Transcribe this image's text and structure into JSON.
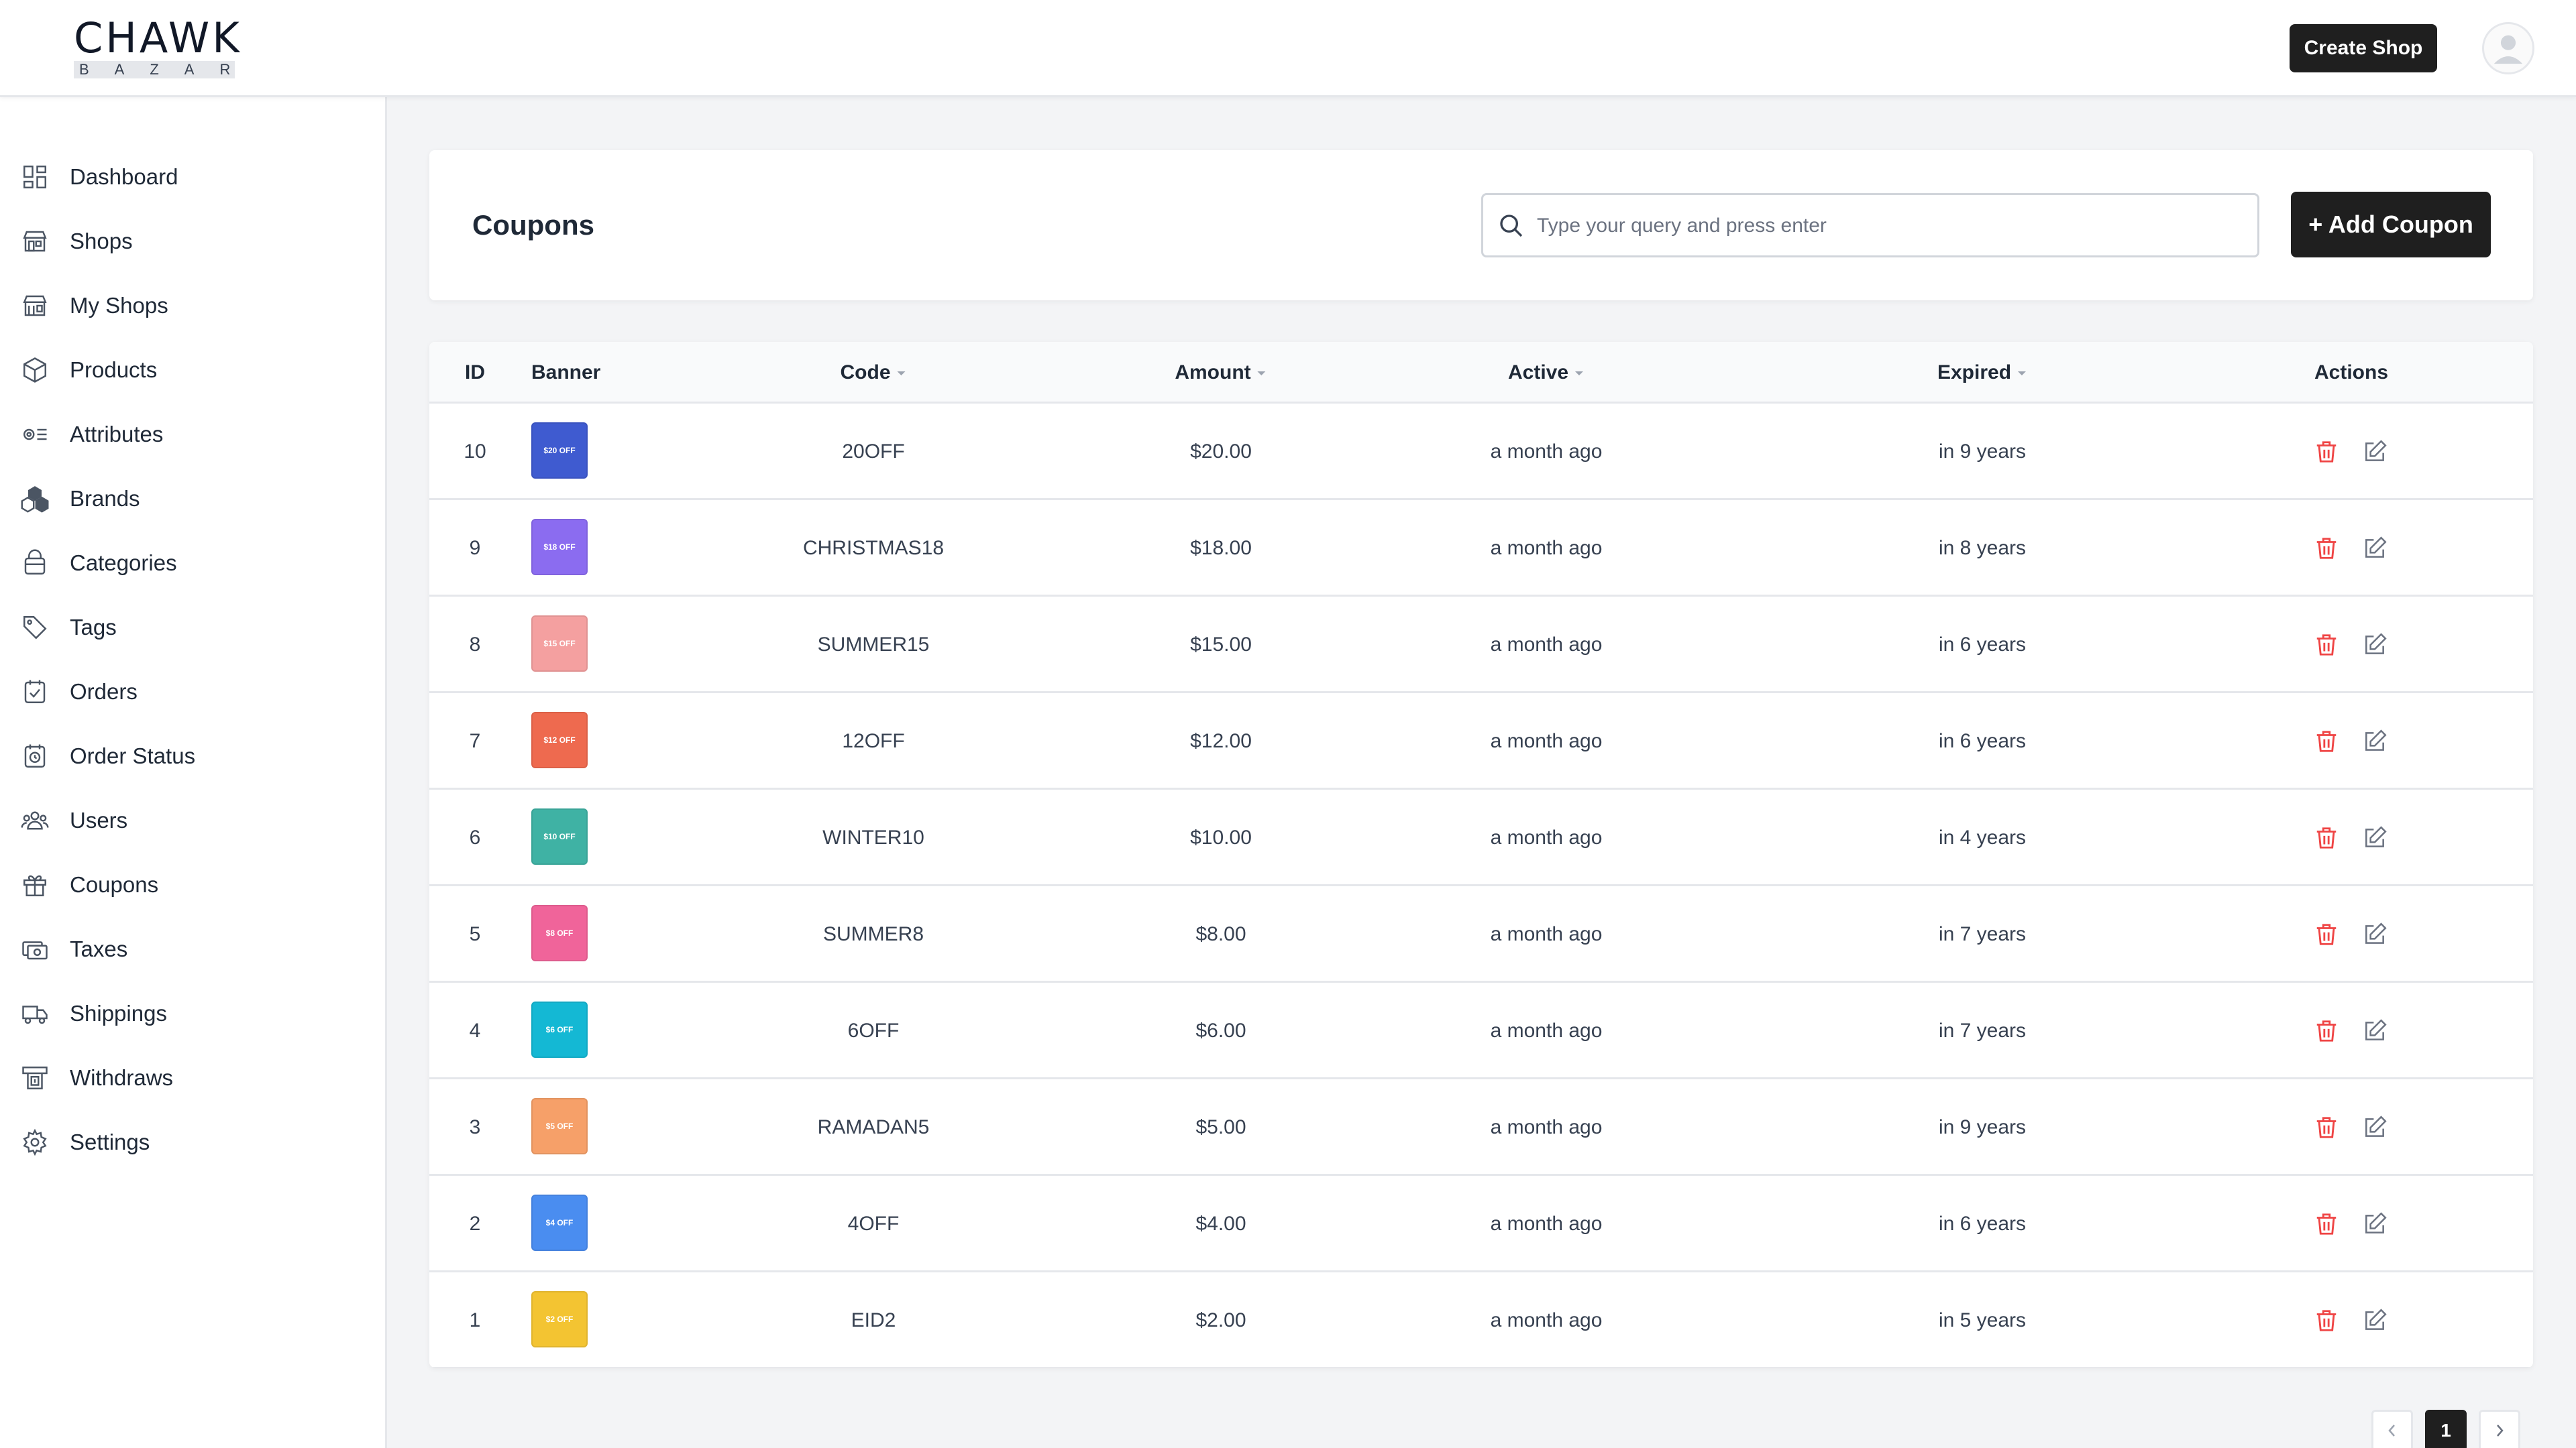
{
  "app": {
    "logo_top": "CHAWK",
    "logo_bottom": "BAZAR",
    "create_shop_label": "Create Shop"
  },
  "sidebar": {
    "items": [
      {
        "label": "Dashboard",
        "icon": "dashboard-icon"
      },
      {
        "label": "Shops",
        "icon": "shop-icon"
      },
      {
        "label": "My Shops",
        "icon": "my-shops-icon"
      },
      {
        "label": "Products",
        "icon": "box-icon"
      },
      {
        "label": "Attributes",
        "icon": "attributes-icon"
      },
      {
        "label": "Brands",
        "icon": "brands-icon"
      },
      {
        "label": "Categories",
        "icon": "categories-icon"
      },
      {
        "label": "Tags",
        "icon": "tag-icon"
      },
      {
        "label": "Orders",
        "icon": "orders-icon"
      },
      {
        "label": "Order Status",
        "icon": "order-status-icon"
      },
      {
        "label": "Users",
        "icon": "users-icon"
      },
      {
        "label": "Coupons",
        "icon": "gift-icon"
      },
      {
        "label": "Taxes",
        "icon": "taxes-icon"
      },
      {
        "label": "Shippings",
        "icon": "truck-icon"
      },
      {
        "label": "Withdraws",
        "icon": "withdraw-icon"
      },
      {
        "label": "Settings",
        "icon": "gear-icon"
      }
    ]
  },
  "page": {
    "title": "Coupons",
    "search_placeholder": "Type your query and press enter",
    "add_label": "+ Add Coupon"
  },
  "table": {
    "columns": {
      "id": "ID",
      "banner": "Banner",
      "code": "Code",
      "amount": "Amount",
      "active": "Active",
      "expired": "Expired",
      "actions": "Actions"
    },
    "rows": [
      {
        "id": "10",
        "banner_text": "$20 OFF",
        "banner_color": "#3f5bd0",
        "code": "20OFF",
        "amount": "$20.00",
        "active": "a month ago",
        "expired": "in 9 years"
      },
      {
        "id": "9",
        "banner_text": "$18 OFF",
        "banner_color": "#8b6cf0",
        "code": "CHRISTMAS18",
        "amount": "$18.00",
        "active": "a month ago",
        "expired": "in 8 years"
      },
      {
        "id": "8",
        "banner_text": "$15 OFF",
        "banner_color": "#f4a0a0",
        "code": "SUMMER15",
        "amount": "$15.00",
        "active": "a month ago",
        "expired": "in 6 years"
      },
      {
        "id": "7",
        "banner_text": "$12 OFF",
        "banner_color": "#ee6a4f",
        "code": "12OFF",
        "amount": "$12.00",
        "active": "a month ago",
        "expired": "in 6 years"
      },
      {
        "id": "6",
        "banner_text": "$10 OFF",
        "banner_color": "#3fb2a4",
        "code": "WINTER10",
        "amount": "$10.00",
        "active": "a month ago",
        "expired": "in 4 years"
      },
      {
        "id": "5",
        "banner_text": "$8 OFF",
        "banner_color": "#f0649a",
        "code": "SUMMER8",
        "amount": "$8.00",
        "active": "a month ago",
        "expired": "in 7 years"
      },
      {
        "id": "4",
        "banner_text": "$6 OFF",
        "banner_color": "#14b8d4",
        "code": "6OFF",
        "amount": "$6.00",
        "active": "a month ago",
        "expired": "in 7 years"
      },
      {
        "id": "3",
        "banner_text": "$5 OFF",
        "banner_color": "#f6a069",
        "code": "RAMADAN5",
        "amount": "$5.00",
        "active": "a month ago",
        "expired": "in 9 years"
      },
      {
        "id": "2",
        "banner_text": "$4 OFF",
        "banner_color": "#4a8df0",
        "code": "4OFF",
        "amount": "$4.00",
        "active": "a month ago",
        "expired": "in 6 years"
      },
      {
        "id": "1",
        "banner_text": "$2 OFF",
        "banner_color": "#f3c432",
        "code": "EID2",
        "amount": "$2.00",
        "active": "a month ago",
        "expired": "in 5 years"
      }
    ]
  },
  "pagination": {
    "current_page": "1"
  },
  "colors": {
    "delete": "#ef4444",
    "edit": "#6b7280",
    "primary_button": "#1f1f1f"
  }
}
